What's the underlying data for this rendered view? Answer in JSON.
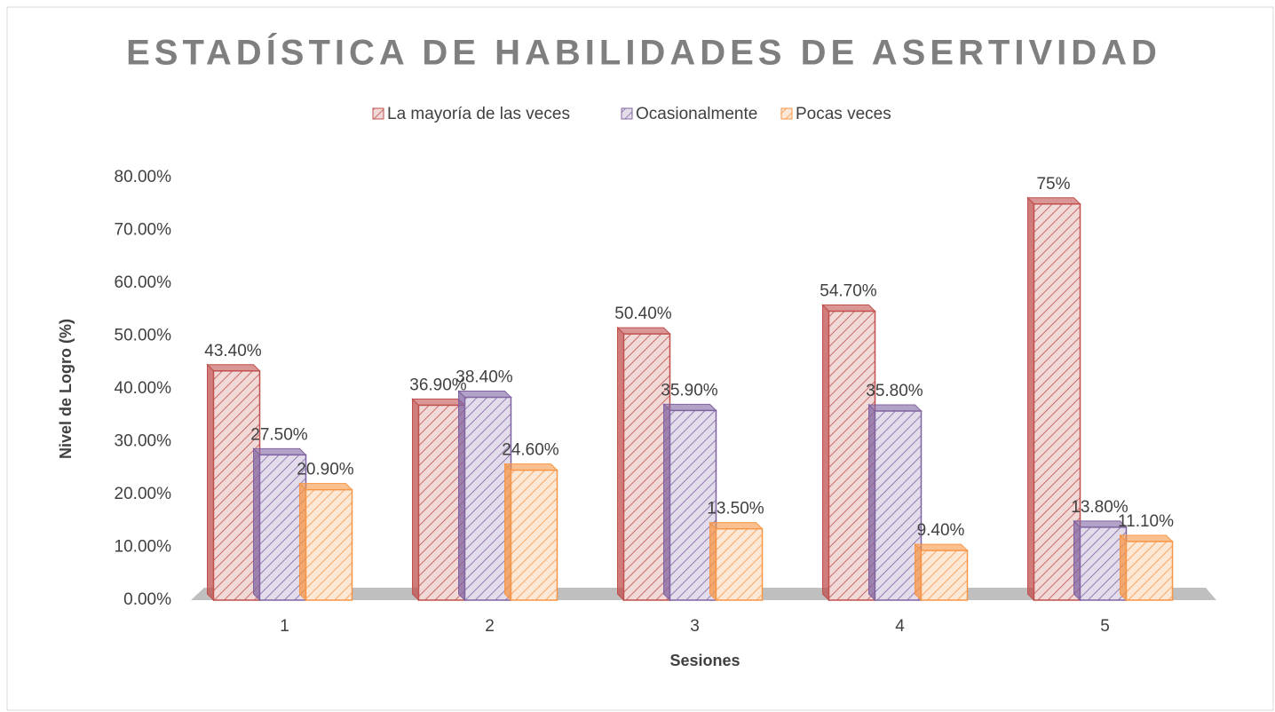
{
  "chart_data": {
    "type": "bar3d",
    "title": "ESTADÍSTICA DE HABILIDADES DE ASERTIVIDAD",
    "x_label": "Sesiones",
    "y_label": "Nivel de Logro (%)",
    "categories": [
      "1",
      "2",
      "3",
      "4",
      "5"
    ],
    "series": [
      {
        "name": "La  mayoría de las veces",
        "color": "#c0504d",
        "values": [
          43.4,
          36.9,
          50.4,
          54.7,
          75
        ],
        "value_labels": [
          "43.40%",
          "36.90%",
          "50.40%",
          "54.70%",
          "75%"
        ]
      },
      {
        "name": "Ocasionalmente",
        "color": "#8064a2",
        "values": [
          27.5,
          38.4,
          35.9,
          35.8,
          13.8
        ],
        "value_labels": [
          "27.50%",
          "38.40%",
          "35.90%",
          "35.80%",
          "13.80%"
        ]
      },
      {
        "name": "Pocas veces",
        "color": "#f79646",
        "values": [
          20.9,
          24.6,
          13.5,
          9.4,
          11.1
        ],
        "value_labels": [
          "20.90%",
          "24.60%",
          "13.50%",
          "9.40%",
          "11.10%"
        ]
      }
    ],
    "ylim": [
      0,
      80
    ],
    "yticks": [
      {
        "value": 0,
        "label": "0.00%"
      },
      {
        "value": 10,
        "label": "10.00%"
      },
      {
        "value": 20,
        "label": "20.00%"
      },
      {
        "value": 30,
        "label": "30.00%"
      },
      {
        "value": 40,
        "label": "40.00%"
      },
      {
        "value": 50,
        "label": "50.00%"
      },
      {
        "value": 60,
        "label": "60.00%"
      },
      {
        "value": 70,
        "label": "70.00%"
      },
      {
        "value": 80,
        "label": "80.00%"
      }
    ],
    "grid": false,
    "legend": "top"
  }
}
